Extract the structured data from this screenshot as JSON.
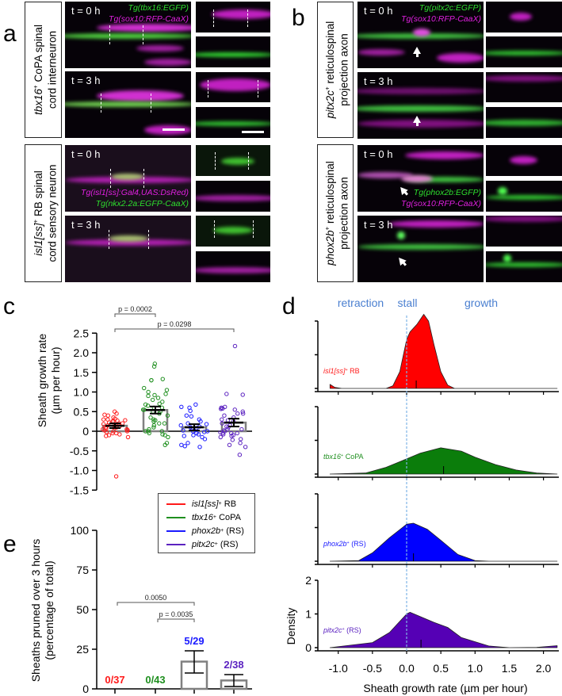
{
  "panels": {
    "a": {
      "label": "a",
      "rows": [
        {
          "gene": "tbx16",
          "sup": "+",
          "rest": " CoPA spinal",
          "line2": "cord interneuron",
          "t0": "t = 0 h",
          "t3": "t = 3 h",
          "tg_green": "Tg(tbx16:EGFP)",
          "tg_magenta": "Tg(sox10:RFP-CaaX)"
        },
        {
          "gene": "isl1[ss]",
          "sup": "+",
          "rest": " RB spinal",
          "line2": "cord sensory neuron",
          "t0": "t = 0 h",
          "t3": "t = 3 h",
          "tg_magenta": "Tg(isl1[ss]:Gal4,UAS:DsRed)",
          "tg_green": "Tg(nkx2.2a:EGFP-CaaX)"
        }
      ]
    },
    "b": {
      "label": "b",
      "rows": [
        {
          "gene": "pitx2c",
          "sup": "+",
          "rest": " reticulospinal",
          "line2": "projection axon",
          "t0": "t = 0 h",
          "t3": "t = 3 h",
          "tg_green": "Tg(pitx2c:EGFP)",
          "tg_magenta": "Tg(sox10:RFP-CaaX)"
        },
        {
          "gene": "phox2b",
          "sup": "+",
          "rest": " reticulospinal",
          "line2": "projection axon",
          "t0": "t = 0 h",
          "t3": "t = 3 h",
          "tg_green": "Tg(phox2b:EGFP)",
          "tg_magenta": "Tg(sox10:RFP-CaaX)"
        }
      ]
    },
    "c": {
      "label": "c"
    },
    "d": {
      "label": "d"
    },
    "e": {
      "label": "e"
    }
  },
  "colors": {
    "red": "#ff1a1a",
    "green": "#1f8f1f",
    "blue": "#1a1aff",
    "purple": "#5b22c0",
    "green_fill": "#0b7d0b",
    "blue_fill": "#0000ff",
    "purple_fill": "#5500b5",
    "red_fill": "#ff0000",
    "stall_line": "#7fb3e6",
    "header": "#4a7fd0",
    "bar_stroke": "#808080"
  },
  "legend": [
    {
      "gene": "isl1[ss]",
      "sup": "+",
      "rest": " RB",
      "color": "#ff1a1a"
    },
    {
      "gene": "tbx16",
      "sup": "+",
      "rest": " CoPA",
      "color": "#1f8f1f"
    },
    {
      "gene": "phox2b",
      "sup": "+",
      "rest": " (RS)",
      "color": "#1a1aff"
    },
    {
      "gene": "pitx2c",
      "sup": "+",
      "rest": " (RS)",
      "color": "#5b22c0"
    }
  ],
  "chart_data": [
    {
      "panel": "c",
      "type": "bar",
      "ylabel": [
        "Sheath growth rate",
        "(µm per hour)"
      ],
      "ylim": [
        -1.5,
        2.5
      ],
      "yticks": [
        "2.5",
        "2.0",
        "1.5",
        "1.0",
        "0.5",
        "0",
        "-0.5",
        "-1.0",
        "-1.5"
      ],
      "ytick_values": [
        2.5,
        2.0,
        1.5,
        1.0,
        0.5,
        0,
        -0.5,
        -1.0,
        -1.5
      ],
      "categories": [
        "isl1[ss]+ RB",
        "tbx16+ CoPA",
        "phox2b+ (RS)",
        "pitx2c+ (RS)"
      ],
      "means": [
        0.14,
        0.54,
        0.1,
        0.22
      ],
      "sem": [
        0.06,
        0.09,
        0.08,
        0.1
      ],
      "points": [
        [
          0.5,
          0.45,
          0.42,
          0.4,
          0.35,
          0.32,
          0.3,
          0.28,
          0.27,
          0.25,
          0.22,
          0.2,
          0.2,
          0.18,
          0.15,
          0.15,
          0.12,
          0.1,
          0.1,
          0.08,
          0.07,
          0.05,
          0.05,
          0.03,
          0.02,
          0,
          0,
          -0.02,
          -0.05,
          -0.05,
          -0.08,
          -0.1,
          -0.12,
          -0.15,
          0.25,
          0.3,
          -1.15
        ],
        [
          1.72,
          1.65,
          1.33,
          1.3,
          1.3,
          1.1,
          1.05,
          1.0,
          0.95,
          0.92,
          0.9,
          0.85,
          0.8,
          0.75,
          0.7,
          0.68,
          0.65,
          0.6,
          0.55,
          0.55,
          0.5,
          0.5,
          0.45,
          0.4,
          0.35,
          0.3,
          0.28,
          0.25,
          0.2,
          0.15,
          0.1,
          0.05,
          0,
          0,
          0,
          -0.05,
          -0.08,
          -0.1,
          -0.15,
          -0.3,
          -0.35,
          0.6,
          0.2
        ],
        [
          0.68,
          0.62,
          0.6,
          0.52,
          0.4,
          0.38,
          0.3,
          0.25,
          0.2,
          0.18,
          0.15,
          0.1,
          0.08,
          0.05,
          0.02,
          0,
          0,
          -0.02,
          -0.05,
          -0.1,
          -0.12,
          -0.15,
          -0.2,
          -0.3,
          -0.35,
          -0.38,
          -0.4,
          0.12,
          -0.08
        ],
        [
          2.17,
          0.95,
          0.93,
          0.62,
          0.6,
          0.58,
          0.57,
          0.55,
          0.5,
          0.45,
          0.4,
          0.35,
          0.3,
          0.28,
          0.25,
          0.2,
          0.15,
          0.12,
          0.1,
          0.05,
          0.02,
          0,
          -0.03,
          -0.05,
          -0.05,
          -0.05,
          -0.08,
          -0.1,
          -0.12,
          -0.15,
          -0.2,
          -0.22,
          -0.3,
          -0.35,
          -0.4,
          -0.6,
          0.45,
          0.05
        ]
      ],
      "comparisons": [
        {
          "from": 0,
          "to": 1,
          "label": "p = 0.0002"
        },
        {
          "from": 0,
          "to": 3,
          "label": "p = 0.0298"
        }
      ]
    },
    {
      "panel": "d",
      "type": "area",
      "headers": [
        "retraction",
        "stall",
        "growth"
      ],
      "xlabel": "Sheath growth rate (µm per hour)",
      "ylabel": "Density",
      "xlim": [
        -1.2,
        2.2
      ],
      "xticks": [
        "-1.0",
        "-0.5",
        "0.0",
        "0.5",
        "1.0",
        "1.5",
        "2.0"
      ],
      "xtick_values": [
        -1.0,
        -0.5,
        0.0,
        0.5,
        1.0,
        1.5,
        2.0
      ],
      "ylim": [
        0,
        2
      ],
      "yticks": [
        "0",
        "1",
        "2"
      ],
      "ytick_values": [
        0,
        1,
        2
      ],
      "stall_x": 0,
      "series": [
        {
          "name": "isl1[ss]+ RB",
          "gene": "isl1[ss]",
          "sup": "+",
          "rest": " RB",
          "mean": 0.14,
          "x": [
            -1.12,
            -1.05,
            -0.95,
            -0.3,
            -0.2,
            -0.1,
            0,
            0.05,
            0.15,
            0.25,
            0.32,
            0.4,
            0.5,
            0.6,
            0.7,
            2.2
          ],
          "y": [
            0.12,
            0.03,
            0,
            0,
            0.08,
            0.5,
            1.45,
            1.68,
            1.9,
            2.2,
            2.0,
            1.3,
            0.5,
            0.1,
            0,
            0
          ]
        },
        {
          "name": "tbx16+ CoPA",
          "gene": "tbx16",
          "sup": "+",
          "rest": " CoPA",
          "mean": 0.54,
          "x": [
            -1.12,
            -0.6,
            -0.3,
            0,
            0.2,
            0.5,
            0.8,
            1.0,
            1.3,
            1.6,
            1.9,
            2.2
          ],
          "y": [
            0,
            0.03,
            0.2,
            0.45,
            0.62,
            0.78,
            0.68,
            0.5,
            0.28,
            0.12,
            0.03,
            0
          ]
        },
        {
          "name": "phox2b+ (RS)",
          "gene": "phox2b",
          "sup": "+",
          "rest": " (RS)",
          "mean": 0.1,
          "x": [
            -1.12,
            -0.7,
            -0.5,
            -0.25,
            0,
            0.1,
            0.3,
            0.5,
            0.75,
            1.0,
            1.2,
            2.2
          ],
          "y": [
            0,
            0.02,
            0.25,
            0.7,
            1.1,
            1.13,
            0.95,
            0.62,
            0.2,
            0.02,
            0,
            0
          ]
        },
        {
          "name": "pitx2c+ (RS)",
          "gene": "pitx2c",
          "sup": "+",
          "rest": " (RS)",
          "mean": 0.21,
          "x": [
            -1.12,
            -0.5,
            -0.25,
            0,
            0.05,
            0.2,
            0.4,
            0.6,
            0.8,
            1.2,
            1.5,
            1.9,
            2.2
          ],
          "y": [
            0,
            0.15,
            0.45,
            1.0,
            1.05,
            0.92,
            0.75,
            0.6,
            0.3,
            0.05,
            0,
            0.01,
            0.06
          ]
        }
      ]
    },
    {
      "panel": "e",
      "type": "bar",
      "ylabel": [
        "Sheaths pruned over 3 hours",
        "(percentage of total)"
      ],
      "ylim": [
        0,
        100
      ],
      "yticks": [
        "0",
        "25",
        "50",
        "75",
        "100"
      ],
      "ytick_values": [
        0,
        25,
        50,
        75,
        100
      ],
      "categories": [
        "isl1[ss]+ RB",
        "tbx16+ CoPA",
        "phox2b+ (RS)",
        "pitx2c+ (RS)"
      ],
      "values": [
        0,
        0,
        17.2,
        5.3
      ],
      "error_low": [
        0,
        0,
        10,
        1.5
      ],
      "error_high": [
        0,
        0,
        24,
        9
      ],
      "fractions": [
        "0/37",
        "0/43",
        "5/29",
        "2/38"
      ],
      "comparisons": [
        {
          "from": 0,
          "to": 2,
          "label": "0.0050"
        },
        {
          "from": 1,
          "to": 2,
          "label": "p = 0.0035"
        }
      ]
    }
  ]
}
